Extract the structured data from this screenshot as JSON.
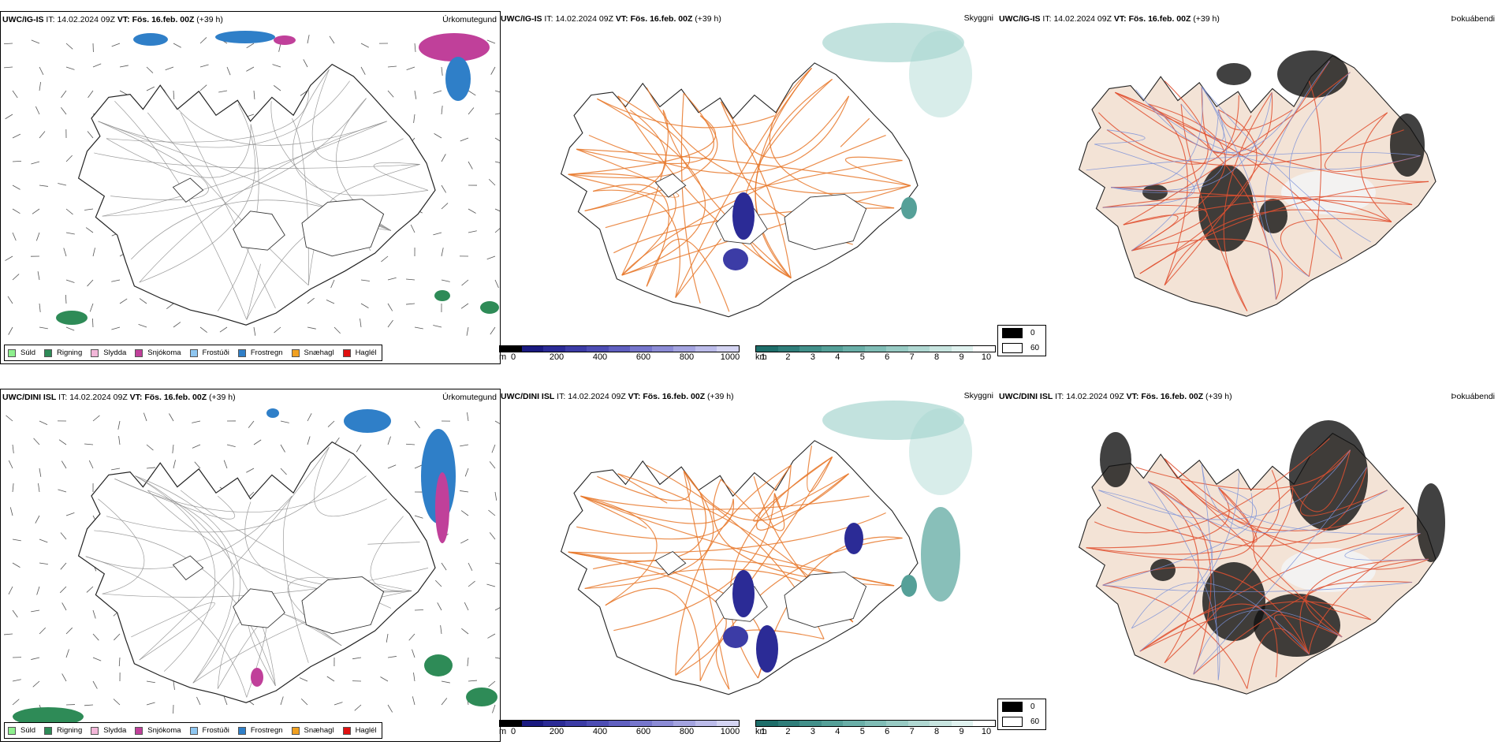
{
  "rows": [
    {
      "precip": {
        "model": "UWC/IG-IS",
        "it_label": "IT:",
        "it_value": "14.02.2024 09Z",
        "vt_label": "VT:",
        "vt_value": "Fös. 16.feb. 00Z",
        "lead": "(+39 h)",
        "title": "Úrkomutegund"
      },
      "vis": {
        "model": "UWC/IG-IS",
        "it_label": "IT:",
        "it_value": "14.02.2024 09Z",
        "vt_label": "VT:",
        "vt_value": "Fös. 16.feb. 00Z",
        "lead": "(+39 h)",
        "title": "Skyggni"
      },
      "fog": {
        "model": "UWC/IG-IS",
        "it_label": "IT:",
        "it_value": "14.02.2024 09Z",
        "vt_label": "VT:",
        "vt_value": "Fös. 16.feb. 00Z",
        "lead": "(+39 h)",
        "title": "Þokuábendi"
      }
    },
    {
      "precip": {
        "model": "UWC/DINI ISL",
        "it_label": "IT:",
        "it_value": "14.02.2024 09Z",
        "vt_label": "VT:",
        "vt_value": "Fös. 16.feb. 00Z",
        "lead": "(+39 h)",
        "title": "Úrkomutegund"
      },
      "vis": {
        "model": "UWC/DINI ISL",
        "it_label": "IT:",
        "it_value": "14.02.2024 09Z",
        "vt_label": "VT:",
        "vt_value": "Fös. 16.feb. 00Z",
        "lead": "(+39 h)",
        "title": "Skyggni"
      },
      "fog": {
        "model": "UWC/DINI ISL",
        "it_label": "IT:",
        "it_value": "14.02.2024 09Z",
        "vt_label": "VT:",
        "vt_value": "Fös. 16.feb. 00Z",
        "lead": "(+39 h)",
        "title": "Þokuábendi"
      }
    }
  ],
  "precip_legend": [
    {
      "label": "Súld",
      "color": "#8ef08e"
    },
    {
      "label": "Rigning",
      "color": "#2e8b57"
    },
    {
      "label": "Slydda",
      "color": "#f2b6d8"
    },
    {
      "label": "Snjókoma",
      "color": "#c0409a"
    },
    {
      "label": "Frostúði",
      "color": "#8ec6f0"
    },
    {
      "label": "Frostregn",
      "color": "#2f7fc8"
    },
    {
      "label": "Snæhagl",
      "color": "#f0a020"
    },
    {
      "label": "Haglél",
      "color": "#e01010"
    }
  ],
  "vis_scales": {
    "m": {
      "unit": "m",
      "ticks": [
        "0",
        "200",
        "400",
        "600",
        "800",
        "1000"
      ],
      "colors": [
        "#000000",
        "#1a1a80",
        "#2b2b96",
        "#3c3ca6",
        "#4d4db4",
        "#6060c0",
        "#7676cc",
        "#8c8cd6",
        "#a4a4e0",
        "#bcbcea",
        "#d4d4f2"
      ]
    },
    "km": {
      "unit": "km",
      "ticks": [
        "1",
        "2",
        "3",
        "4",
        "5",
        "6",
        "7",
        "8",
        "9",
        "10"
      ],
      "colors": [
        "#1e6e6a",
        "#2f7e7a",
        "#42908a",
        "#55a098",
        "#6aafa8",
        "#80bdb6",
        "#98cbc4",
        "#b0d8d2",
        "#c8e5e0",
        "#e0f2ef",
        "#ffffff"
      ]
    }
  },
  "fog_scale": [
    {
      "label": "0",
      "color": "#000000"
    },
    {
      "label": "60",
      "color": "#ffffff"
    }
  ],
  "colors": {
    "land_fill": "#f3e3d6",
    "road_orange": "#e8782a",
    "road_red": "#e05030",
    "river_blue": "#7a90d8",
    "outline": "#222222"
  }
}
